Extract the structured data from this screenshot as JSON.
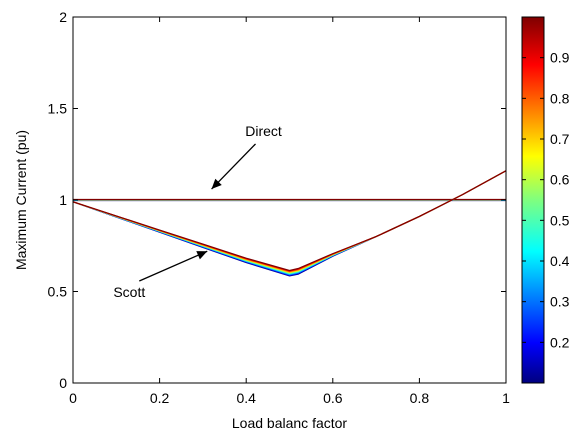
{
  "chart_data": {
    "type": "line",
    "title": "",
    "xlabel": "Load balanc factor",
    "ylabel": "Maximum Current (pu)",
    "xlim": [
      0,
      1
    ],
    "ylim": [
      0,
      2
    ],
    "x_ticks": [
      0,
      0.2,
      0.4,
      0.6,
      0.8,
      1
    ],
    "y_ticks": [
      0,
      0.5,
      1,
      1.5,
      2
    ],
    "x_tick_labels": [
      "0",
      "0.2",
      "0.4",
      "0.6",
      "0.8",
      "1"
    ],
    "y_tick_labels": [
      "0",
      "0.5",
      "1",
      "1.5",
      "2"
    ],
    "grid": false,
    "colorbar": {
      "range": [
        0.1,
        1.0
      ],
      "ticks": [
        0.2,
        0.3,
        0.4,
        0.5,
        0.6,
        0.7,
        0.8,
        0.9
      ],
      "tick_labels": [
        "0.2",
        "0.3",
        "0.4",
        "0.5",
        "0.6",
        "0.7",
        "0.8",
        "0.9"
      ],
      "colormap": "jet"
    },
    "series": [
      {
        "x": [
          0,
          0.1,
          0.2,
          0.3,
          0.4,
          0.5,
          0.6,
          0.7,
          0.8,
          0.9,
          1.0
        ],
        "y": [
          1.0,
          1.0,
          1.0,
          1.0,
          1.0,
          1.0,
          1.0,
          1.0,
          1.0,
          1.0,
          1.0
        ],
        "color_value_range": [
          0.1,
          1.0
        ]
      },
      {
        "x": [
          0,
          0.1,
          0.2,
          0.3,
          0.4,
          0.5,
          0.52,
          0.6,
          0.7,
          0.8,
          0.85,
          0.9,
          1.0
        ],
        "y": [
          0.99,
          0.91,
          0.83,
          0.75,
          0.67,
          0.6,
          0.61,
          0.7,
          0.8,
          0.91,
          0.97,
          1.03,
          1.16
        ],
        "color_value_range": [
          0.1,
          1.0
        ]
      }
    ],
    "annotations": [
      {
        "text": "Direct",
        "text_at": [
          0.44,
          1.35
        ],
        "arrow_to": [
          0.32,
          1.06
        ]
      },
      {
        "text": "Scott",
        "text_at": [
          0.13,
          0.47
        ],
        "arrow_to": [
          0.31,
          0.72
        ]
      }
    ]
  }
}
